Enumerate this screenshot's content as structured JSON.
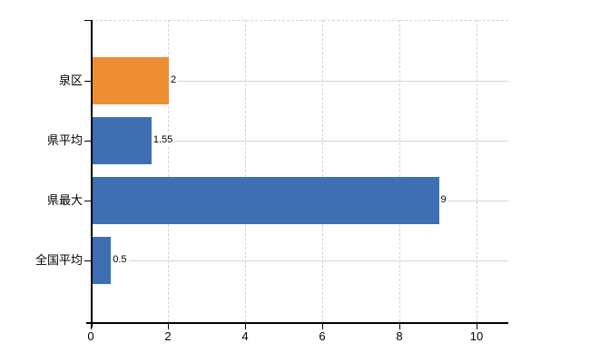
{
  "chart_data": {
    "type": "bar",
    "orientation": "horizontal",
    "title": "",
    "xlabel": "",
    "ylabel": "",
    "categories": [
      "泉区",
      "県平均",
      "県最大",
      "全国平均"
    ],
    "values": [
      2,
      1.55,
      9,
      0.5
    ],
    "value_labels": [
      "2",
      "1.55",
      "9",
      "0.5"
    ],
    "bar_colors": [
      "#ED8E35",
      "#3D6FB2",
      "#3D6FB2",
      "#3D6FB2"
    ],
    "xlim": [
      0,
      10
    ],
    "x_ticks": [
      0,
      2,
      4,
      6,
      8,
      10
    ],
    "x_tick_labels": [
      "0",
      "2",
      "4",
      "6",
      "8",
      "10"
    ],
    "grid": true,
    "legend": false
  },
  "colors": {
    "bar_orange": "#ED8E35",
    "bar_blue": "#3D6FB2",
    "vertical_gridline": "#d5d2d5",
    "row_gridline": "#d2d8d4",
    "axis": "#000000",
    "background": "#ffffff",
    "text": "#000000"
  }
}
